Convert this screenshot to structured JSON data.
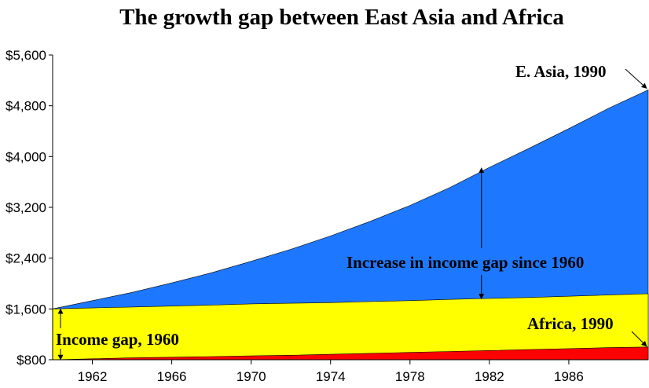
{
  "chart_data": {
    "type": "area",
    "title": "The growth gap between East Asia and Africa",
    "xlabel": "",
    "ylabel": "",
    "xlim": [
      1960,
      1990
    ],
    "ylim": [
      800,
      5600
    ],
    "yticks": [
      800,
      1600,
      2400,
      3200,
      4000,
      4800,
      5600
    ],
    "ytick_labels": [
      "$800",
      "$1,600",
      "$2,400",
      "$3,200",
      "$4,000",
      "$4,800",
      "$5,600"
    ],
    "xticks": [
      1962,
      1966,
      1970,
      1974,
      1978,
      1982,
      1986
    ],
    "xtick_labels": [
      "1962",
      "1966",
      "1970",
      "1974",
      "1978",
      "1982",
      "1986"
    ],
    "grid": false,
    "x": [
      1960,
      1962,
      1964,
      1966,
      1968,
      1970,
      1972,
      1974,
      1976,
      1978,
      1980,
      1982,
      1984,
      1986,
      1988,
      1990
    ],
    "series": [
      {
        "color": "#1e78ff",
        "values": [
          1600,
          1730,
          1860,
          2010,
          2170,
          2350,
          2540,
          2750,
          2980,
          3230,
          3510,
          3830,
          4130,
          4440,
          4760,
          5050
        ]
      },
      {
        "color": "#ffff00",
        "values": [
          1600,
          1615,
          1630,
          1645,
          1660,
          1680,
          1690,
          1700,
          1715,
          1730,
          1750,
          1765,
          1780,
          1800,
          1820,
          1840
        ]
      },
      {
        "color": "#ff0000",
        "values": [
          800,
          815,
          830,
          840,
          850,
          860,
          870,
          885,
          900,
          915,
          930,
          945,
          960,
          975,
          990,
          1000
        ]
      }
    ],
    "annotations": [
      {
        "text": "E. Asia, 1990",
        "arrow_to": [
          1990,
          5050
        ]
      },
      {
        "text": "Increase in income gap since 1960",
        "arrow_from": [
          1981.6,
          1760
        ],
        "arrow_to": [
          1981.6,
          3820
        ]
      },
      {
        "text": "Income gap, 1960",
        "arrow_from": [
          1960.2,
          800
        ],
        "arrow_to": [
          1960.2,
          1600
        ]
      },
      {
        "text": "Africa, 1990",
        "arrow_to": [
          1990,
          1000
        ]
      }
    ]
  }
}
